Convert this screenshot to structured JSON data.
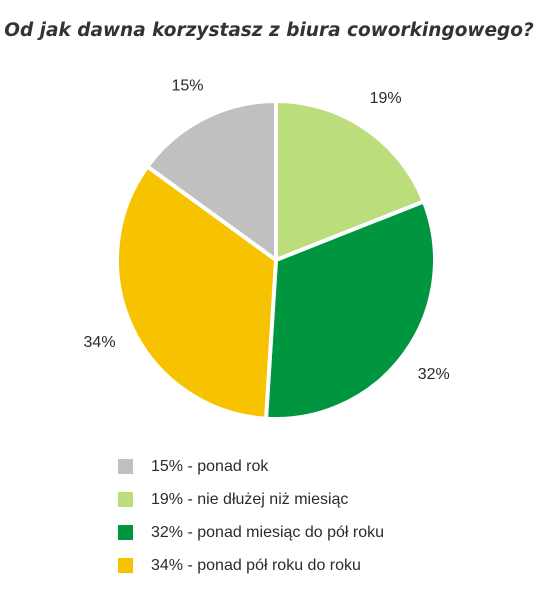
{
  "chart_data": {
    "type": "pie",
    "title": "Od jak dawna korzystasz z biura coworkingowego?",
    "slices": [
      {
        "label": "15%",
        "value": 15,
        "color": "#c0c0c0",
        "legend": "15% - ponad rok"
      },
      {
        "label": "19%",
        "value": 19,
        "color": "#bcdd7c",
        "legend": "19% - nie dłużej niż miesiąc"
      },
      {
        "label": "32%",
        "value": 32,
        "color": "#009640",
        "legend": "32% - ponad miesiąc do pół roku"
      },
      {
        "label": "34%",
        "value": 34,
        "color": "#f7c200",
        "legend": "34% - ponad pół roku do roku"
      }
    ],
    "slice_order": [
      1,
      2,
      3,
      0
    ],
    "start_angle_deg": 0,
    "legend_position": "bottom"
  }
}
